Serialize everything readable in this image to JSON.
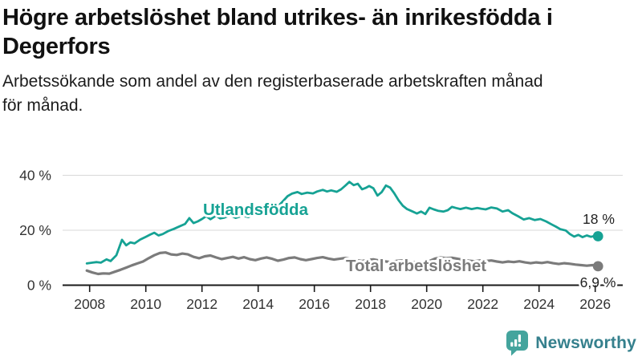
{
  "header": {
    "title_lines": [
      "Högre arbetslöshet bland utrikes- än inrikesfödda i",
      "Degerfors"
    ],
    "subtitle_lines": [
      "Arbetssökande som andel av den registerbaserade arbetskraften månad",
      "för månad."
    ]
  },
  "chart_data": {
    "type": "line",
    "title": "Högre arbetslöshet bland utrikes- än inrikesfödda i Degerfors",
    "subtitle": "Arbetssökande som andel av den registerbaserade arbetskraften månad för månad.",
    "xlabel": "",
    "ylabel": "",
    "xlim": [
      2007.2,
      2027
    ],
    "ylim": [
      0,
      44
    ],
    "grid": "horizontal",
    "grid_color": "#d8d8d8",
    "axis_color": "#1a1a1a",
    "tick_text_color": "#333333",
    "yticks": [
      {
        "value": 0,
        "label": "0 %"
      },
      {
        "value": 20,
        "label": "20 %"
      },
      {
        "value": 40,
        "label": "40 %"
      }
    ],
    "xticks": [
      {
        "value": 2008,
        "label": "2008"
      },
      {
        "value": 2010,
        "label": "2010"
      },
      {
        "value": 2012,
        "label": "2012"
      },
      {
        "value": 2014,
        "label": "2014"
      },
      {
        "value": 2016,
        "label": "2016"
      },
      {
        "value": 2018,
        "label": "2018"
      },
      {
        "value": 2020,
        "label": "2020"
      },
      {
        "value": 2022,
        "label": "2022"
      },
      {
        "value": 2024,
        "label": "2024"
      },
      {
        "value": 2026,
        "label": "2026"
      }
    ],
    "series": [
      {
        "name": "Utlandsfödda",
        "color": "#16a294",
        "end_label": "18 %",
        "end_value": 18,
        "points": [
          [
            2007.9,
            7.9
          ],
          [
            2008.1,
            8.2
          ],
          [
            2008.25,
            8.4
          ],
          [
            2008.4,
            8.2
          ],
          [
            2008.6,
            9.4
          ],
          [
            2008.75,
            8.8
          ],
          [
            2008.95,
            10.9
          ],
          [
            2009.15,
            16.5
          ],
          [
            2009.3,
            14.5
          ],
          [
            2009.45,
            15.6
          ],
          [
            2009.6,
            15.2
          ],
          [
            2009.8,
            16.6
          ],
          [
            2010.0,
            17.6
          ],
          [
            2010.15,
            18.4
          ],
          [
            2010.3,
            19.1
          ],
          [
            2010.45,
            18.1
          ],
          [
            2010.6,
            18.6
          ],
          [
            2010.8,
            19.7
          ],
          [
            2011.0,
            20.5
          ],
          [
            2011.2,
            21.4
          ],
          [
            2011.4,
            22.3
          ],
          [
            2011.55,
            24.4
          ],
          [
            2011.7,
            22.6
          ],
          [
            2011.85,
            23.2
          ],
          [
            2012.0,
            24.1
          ],
          [
            2012.15,
            25.1
          ],
          [
            2012.3,
            24.0
          ],
          [
            2012.5,
            25.3
          ],
          [
            2012.65,
            24.3
          ],
          [
            2012.8,
            24.6
          ],
          [
            2013.0,
            25.5
          ],
          [
            2013.2,
            24.5
          ],
          [
            2013.45,
            25.3
          ],
          [
            2013.65,
            24.8
          ],
          [
            2013.85,
            25.8
          ],
          [
            2014.05,
            26.3
          ],
          [
            2014.25,
            27.0
          ],
          [
            2014.45,
            27.4
          ],
          [
            2014.65,
            28.2
          ],
          [
            2014.85,
            30.2
          ],
          [
            2015.05,
            32.4
          ],
          [
            2015.2,
            33.3
          ],
          [
            2015.4,
            33.9
          ],
          [
            2015.55,
            33.2
          ],
          [
            2015.75,
            33.7
          ],
          [
            2015.95,
            33.4
          ],
          [
            2016.1,
            34.1
          ],
          [
            2016.3,
            34.7
          ],
          [
            2016.45,
            34.1
          ],
          [
            2016.6,
            34.5
          ],
          [
            2016.8,
            34.0
          ],
          [
            2016.95,
            34.9
          ],
          [
            2017.1,
            36.2
          ],
          [
            2017.25,
            37.6
          ],
          [
            2017.4,
            36.4
          ],
          [
            2017.55,
            36.9
          ],
          [
            2017.7,
            34.9
          ],
          [
            2017.85,
            35.5
          ],
          [
            2017.95,
            36.1
          ],
          [
            2018.1,
            35.3
          ],
          [
            2018.25,
            32.6
          ],
          [
            2018.4,
            33.9
          ],
          [
            2018.55,
            36.3
          ],
          [
            2018.7,
            35.5
          ],
          [
            2018.85,
            33.4
          ],
          [
            2019.0,
            30.9
          ],
          [
            2019.15,
            28.9
          ],
          [
            2019.3,
            27.7
          ],
          [
            2019.5,
            26.8
          ],
          [
            2019.65,
            26.1
          ],
          [
            2019.8,
            26.8
          ],
          [
            2019.95,
            25.9
          ],
          [
            2020.1,
            28.2
          ],
          [
            2020.25,
            27.6
          ],
          [
            2020.4,
            27.1
          ],
          [
            2020.6,
            26.8
          ],
          [
            2020.75,
            27.3
          ],
          [
            2020.9,
            28.5
          ],
          [
            2021.05,
            28.1
          ],
          [
            2021.2,
            27.7
          ],
          [
            2021.4,
            28.2
          ],
          [
            2021.6,
            27.7
          ],
          [
            2021.8,
            28.1
          ],
          [
            2021.95,
            27.8
          ],
          [
            2022.1,
            27.6
          ],
          [
            2022.3,
            28.3
          ],
          [
            2022.5,
            27.9
          ],
          [
            2022.7,
            26.8
          ],
          [
            2022.9,
            27.3
          ],
          [
            2023.05,
            26.2
          ],
          [
            2023.25,
            25.1
          ],
          [
            2023.45,
            23.9
          ],
          [
            2023.65,
            24.4
          ],
          [
            2023.85,
            23.7
          ],
          [
            2024.05,
            24.1
          ],
          [
            2024.25,
            23.2
          ],
          [
            2024.45,
            22.1
          ],
          [
            2024.6,
            21.3
          ],
          [
            2024.75,
            20.4
          ],
          [
            2024.95,
            19.9
          ],
          [
            2025.1,
            18.6
          ],
          [
            2025.25,
            17.7
          ],
          [
            2025.4,
            18.3
          ],
          [
            2025.55,
            17.5
          ],
          [
            2025.7,
            18.1
          ],
          [
            2025.85,
            17.6
          ],
          [
            2026.0,
            18.0
          ],
          [
            2026.1,
            17.8
          ]
        ]
      },
      {
        "name": "Total arbetslöshet",
        "color": "#7b7b7b",
        "end_label": "6,9 %",
        "end_value": 6.9,
        "points": [
          [
            2007.9,
            5.3
          ],
          [
            2008.1,
            4.6
          ],
          [
            2008.3,
            4.1
          ],
          [
            2008.5,
            4.3
          ],
          [
            2008.7,
            4.2
          ],
          [
            2008.9,
            4.9
          ],
          [
            2009.1,
            5.6
          ],
          [
            2009.3,
            6.4
          ],
          [
            2009.5,
            7.2
          ],
          [
            2009.7,
            7.9
          ],
          [
            2009.9,
            8.6
          ],
          [
            2010.1,
            9.8
          ],
          [
            2010.3,
            10.9
          ],
          [
            2010.5,
            11.7
          ],
          [
            2010.7,
            11.9
          ],
          [
            2010.9,
            11.2
          ],
          [
            2011.1,
            11.0
          ],
          [
            2011.3,
            11.5
          ],
          [
            2011.5,
            11.2
          ],
          [
            2011.7,
            10.3
          ],
          [
            2011.9,
            9.8
          ],
          [
            2012.1,
            10.5
          ],
          [
            2012.3,
            10.8
          ],
          [
            2012.5,
            10.1
          ],
          [
            2012.7,
            9.5
          ],
          [
            2012.9,
            9.9
          ],
          [
            2013.1,
            10.3
          ],
          [
            2013.3,
            9.7
          ],
          [
            2013.5,
            10.2
          ],
          [
            2013.7,
            9.5
          ],
          [
            2013.9,
            9.1
          ],
          [
            2014.1,
            9.7
          ],
          [
            2014.3,
            10.1
          ],
          [
            2014.5,
            9.6
          ],
          [
            2014.7,
            8.9
          ],
          [
            2014.9,
            9.3
          ],
          [
            2015.1,
            9.9
          ],
          [
            2015.3,
            10.1
          ],
          [
            2015.5,
            9.5
          ],
          [
            2015.7,
            9.1
          ],
          [
            2015.9,
            9.5
          ],
          [
            2016.1,
            9.9
          ],
          [
            2016.3,
            10.2
          ],
          [
            2016.5,
            9.7
          ],
          [
            2016.7,
            9.3
          ],
          [
            2016.9,
            9.6
          ],
          [
            2017.1,
            9.9
          ],
          [
            2017.3,
            9.5
          ],
          [
            2017.5,
            9.1
          ],
          [
            2017.7,
            8.8
          ],
          [
            2017.9,
            9.2
          ],
          [
            2018.1,
            9.4
          ],
          [
            2018.3,
            9.0
          ],
          [
            2018.5,
            8.7
          ],
          [
            2018.7,
            8.4
          ],
          [
            2018.9,
            8.8
          ],
          [
            2019.1,
            9.0
          ],
          [
            2019.3,
            8.7
          ],
          [
            2019.5,
            8.4
          ],
          [
            2019.7,
            8.2
          ],
          [
            2019.9,
            8.5
          ],
          [
            2020.1,
            8.8
          ],
          [
            2020.3,
            9.7
          ],
          [
            2020.5,
            10.1
          ],
          [
            2020.7,
            9.8
          ],
          [
            2020.9,
            10.0
          ],
          [
            2021.1,
            9.6
          ],
          [
            2021.3,
            9.2
          ],
          [
            2021.5,
            8.9
          ],
          [
            2021.7,
            8.7
          ],
          [
            2021.9,
            9.0
          ],
          [
            2022.1,
            8.8
          ],
          [
            2022.3,
            9.0
          ],
          [
            2022.5,
            8.6
          ],
          [
            2022.7,
            8.3
          ],
          [
            2022.9,
            8.6
          ],
          [
            2023.1,
            8.4
          ],
          [
            2023.3,
            8.7
          ],
          [
            2023.5,
            8.3
          ],
          [
            2023.7,
            8.0
          ],
          [
            2023.9,
            8.3
          ],
          [
            2024.1,
            8.1
          ],
          [
            2024.3,
            8.4
          ],
          [
            2024.5,
            8.0
          ],
          [
            2024.7,
            7.7
          ],
          [
            2024.9,
            8.0
          ],
          [
            2025.1,
            7.8
          ],
          [
            2025.3,
            7.5
          ],
          [
            2025.5,
            7.3
          ],
          [
            2025.7,
            7.1
          ],
          [
            2025.9,
            7.3
          ],
          [
            2026.1,
            6.9
          ]
        ]
      }
    ],
    "legend_position": "inline-labels"
  },
  "footer": {
    "brand": "Newsworthy",
    "brand_icon": "newsworthy-bar-chart-bubble-icon",
    "icon_color": "#44a49d",
    "text_color": "#35808d"
  }
}
